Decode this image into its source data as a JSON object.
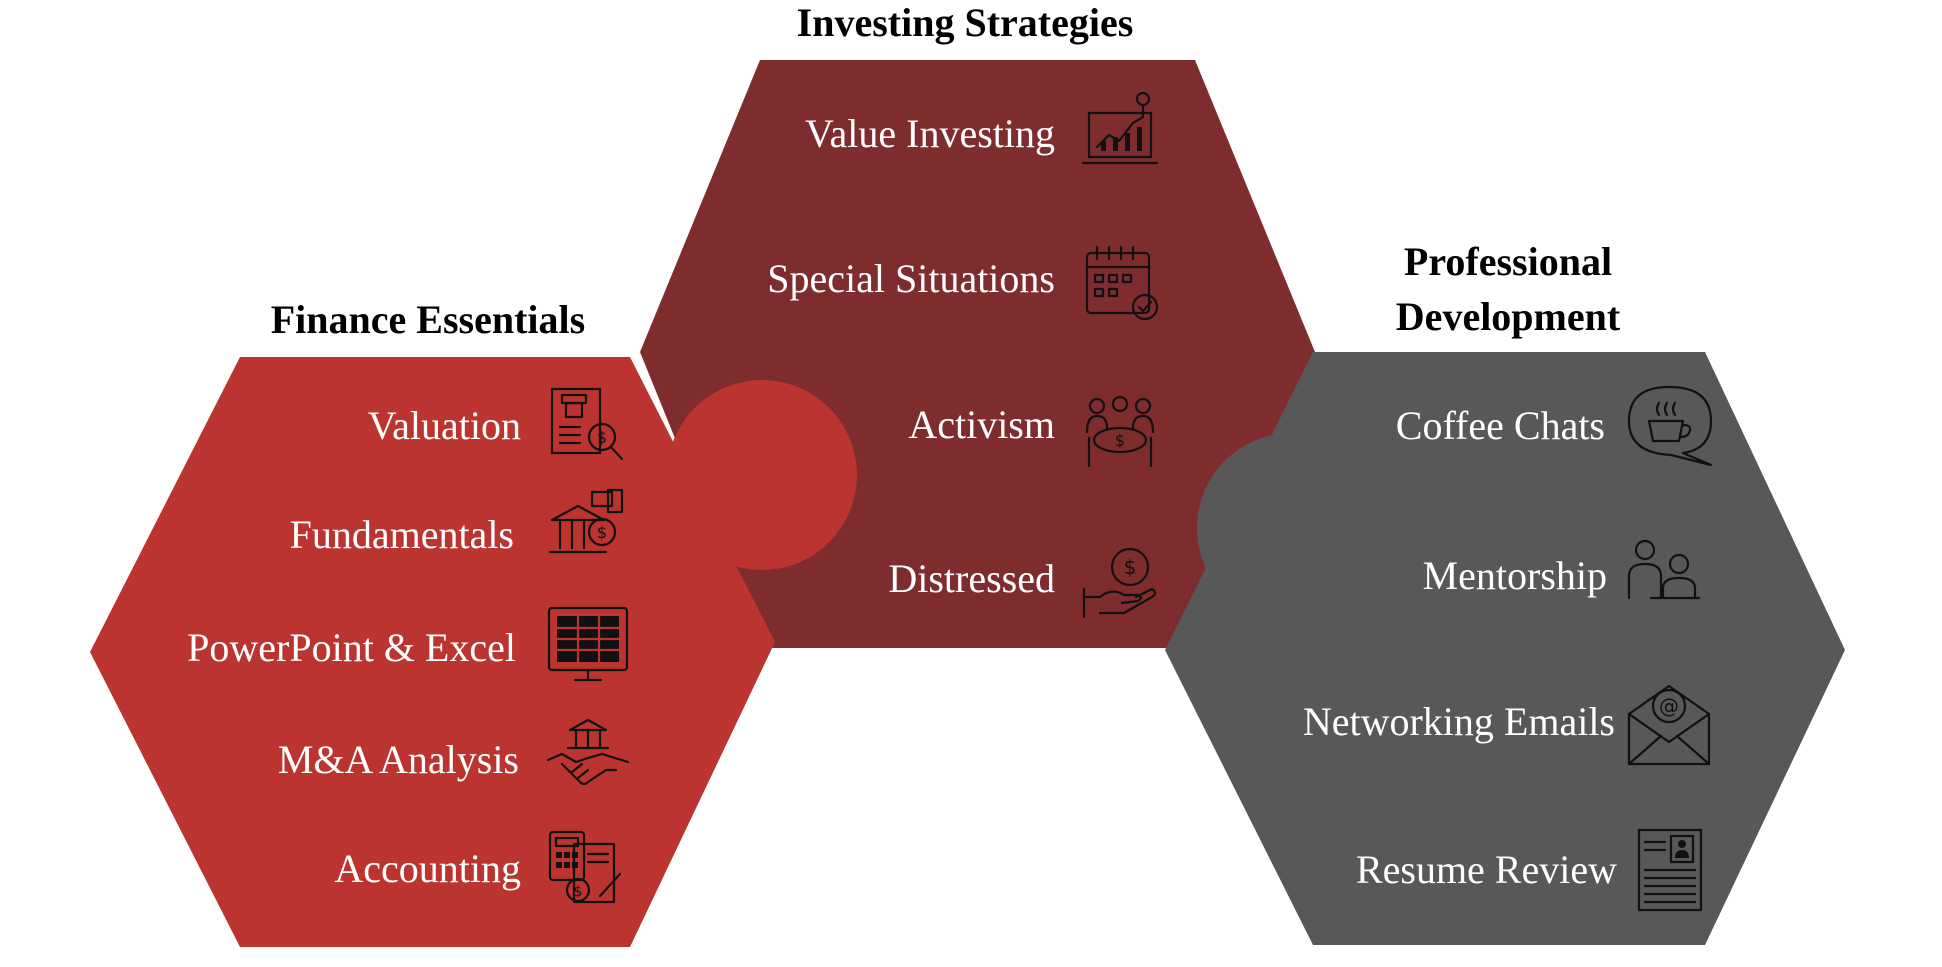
{
  "colors": {
    "finance": "#BC3430",
    "investing": "#7F2C2E",
    "professional": "#585858",
    "label": "#FFFFFF",
    "title": "#000000"
  },
  "finance": {
    "title": "Finance Essentials",
    "items": [
      {
        "label": "Valuation",
        "icon": "valuation-report-magnifier-icon"
      },
      {
        "label": "Fundamentals",
        "icon": "bank-coin-icon"
      },
      {
        "label": "PowerPoint & Excel",
        "icon": "spreadsheet-monitor-icon"
      },
      {
        "label": "M&A Analysis",
        "icon": "handshake-bank-icon"
      },
      {
        "label": "Accounting",
        "icon": "calculator-invoice-icon"
      }
    ]
  },
  "investing": {
    "title": "Investing Strategies",
    "items": [
      {
        "label": "Value Investing",
        "icon": "laptop-growth-chart-icon"
      },
      {
        "label": "Special Situations",
        "icon": "calendar-check-icon"
      },
      {
        "label": "Activism",
        "icon": "group-table-icon"
      },
      {
        "label": "Distressed",
        "icon": "hand-coin-icon"
      }
    ]
  },
  "professional": {
    "title_line1": "Professional",
    "title_line2": "Development",
    "items": [
      {
        "label": "Coffee Chats",
        "icon": "coffee-speech-bubble-icon"
      },
      {
        "label": "Mentorship",
        "icon": "mentor-people-icon"
      },
      {
        "label": "Networking Emails",
        "icon": "email-at-envelope-icon"
      },
      {
        "label": "Resume Review",
        "icon": "resume-document-icon"
      }
    ]
  }
}
